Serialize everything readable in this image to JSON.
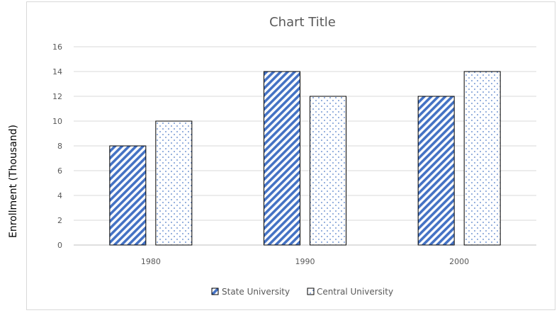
{
  "chart_data": {
    "type": "bar",
    "title": "Chart Title",
    "xlabel": "",
    "ylabel": "Enrollment (Thousand)",
    "categories": [
      "1980",
      "1990",
      "2000"
    ],
    "series": [
      {
        "name": "State University",
        "values": [
          8,
          14,
          12
        ],
        "pattern": "diagonal-stripes",
        "color": "#4472c4"
      },
      {
        "name": "Central University",
        "values": [
          10,
          12,
          14
        ],
        "pattern": "dots",
        "color": "#4472c4"
      }
    ],
    "ylim": [
      0,
      16
    ],
    "yticks": [
      "0",
      "2",
      "4",
      "6",
      "8",
      "10",
      "12",
      "14",
      "16"
    ],
    "grid": true,
    "legend_position": "bottom"
  }
}
